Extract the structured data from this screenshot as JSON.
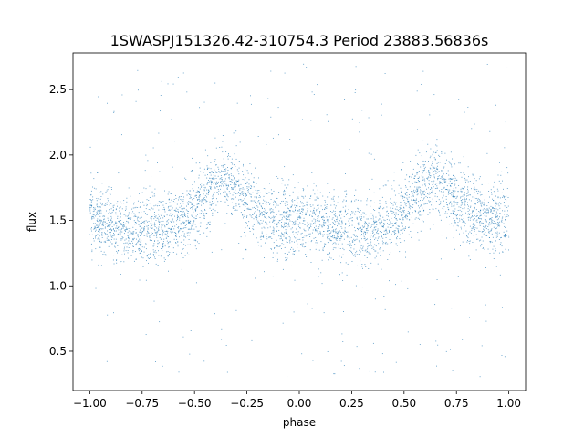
{
  "chart_data": {
    "type": "scatter",
    "title": "1SWASPJ151326.42-310754.3 Period 23883.56836s",
    "xlabel": "phase",
    "ylabel": "flux",
    "xlim": [
      -1.08,
      1.08
    ],
    "ylim": [
      0.2,
      2.78
    ],
    "x_ticks": [
      -1.0,
      -0.75,
      -0.5,
      -0.25,
      0.0,
      0.25,
      0.5,
      0.75,
      1.0
    ],
    "x_tick_labels": [
      "−1.00",
      "−0.75",
      "−0.50",
      "−0.25",
      "0.00",
      "0.25",
      "0.50",
      "0.75",
      "1.00"
    ],
    "y_ticks": [
      0.5,
      1.0,
      1.5,
      2.0,
      2.5
    ],
    "y_tick_labels": [
      "0.5",
      "1.0",
      "1.5",
      "2.0",
      "2.5"
    ],
    "grid": false,
    "legend": "none",
    "point_color": "#1f77b4",
    "series": [
      {
        "phase": [
          -1.0,
          -0.95,
          -0.9,
          -0.85,
          -0.8,
          -0.75,
          -0.7,
          -0.65,
          -0.6,
          -0.55,
          -0.5,
          -0.45,
          -0.4,
          -0.35,
          -0.3,
          -0.25,
          -0.2,
          -0.15,
          -0.1,
          -0.05,
          0.0,
          0.05,
          0.1,
          0.15,
          0.2,
          0.25,
          0.3,
          0.35,
          0.4,
          0.45,
          0.5,
          0.55,
          0.6,
          0.65,
          0.7,
          0.75,
          0.8,
          0.85,
          0.9,
          0.95,
          1.0
        ],
        "median_flux": [
          1.5,
          1.49,
          1.47,
          1.45,
          1.43,
          1.42,
          1.43,
          1.45,
          1.47,
          1.5,
          1.56,
          1.68,
          1.78,
          1.82,
          1.75,
          1.65,
          1.58,
          1.53,
          1.5,
          1.49,
          1.5,
          1.49,
          1.47,
          1.45,
          1.43,
          1.42,
          1.43,
          1.45,
          1.47,
          1.5,
          1.56,
          1.68,
          1.78,
          1.82,
          1.75,
          1.65,
          1.58,
          1.53,
          1.5,
          1.49,
          1.5
        ],
        "core_scatter": 0.13,
        "flux_range": [
          0.3,
          2.7
        ]
      }
    ]
  }
}
